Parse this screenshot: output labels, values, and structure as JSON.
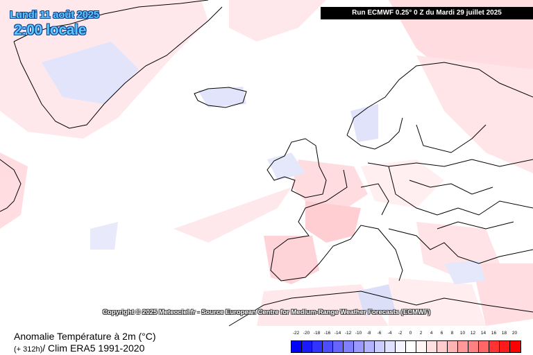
{
  "header": {
    "date": "Lundi 11 août 2025",
    "time": "2:00 locale",
    "run": "Run ECMWF 0.25° 0 Z du Mardi 29 juillet 2025"
  },
  "copyright": "Copyright © 2025 Meteociel.fr - Source European Centre for Medium-Range Weather Forecasts (ECMWF)",
  "footer": {
    "title": "Anomalie Température à 2m (°C)",
    "lead": "(+ 312h)",
    "clim": "/ Clim ERA5 1991-2020"
  },
  "legend": {
    "ticks": [
      "-22",
      "-20",
      "-18",
      "-16",
      "-14",
      "-12",
      "-10",
      "-8",
      "-6",
      "-4",
      "-2",
      "0",
      "2",
      "4",
      "6",
      "8",
      "10",
      "12",
      "14",
      "16",
      "18",
      "20"
    ],
    "colors": [
      "#0000ff",
      "#1a1aff",
      "#3333ff",
      "#4d4dff",
      "#6666ff",
      "#8080ff",
      "#9999ff",
      "#b3b3ff",
      "#ccccff",
      "#e0e0ff",
      "#f5f5ff",
      "#ffffff",
      "#fff5f5",
      "#ffe0e0",
      "#ffcccc",
      "#ffb3b3",
      "#ff9999",
      "#ff8080",
      "#ff6666",
      "#ff3333",
      "#ff1a1a",
      "#ff0000"
    ]
  }
}
